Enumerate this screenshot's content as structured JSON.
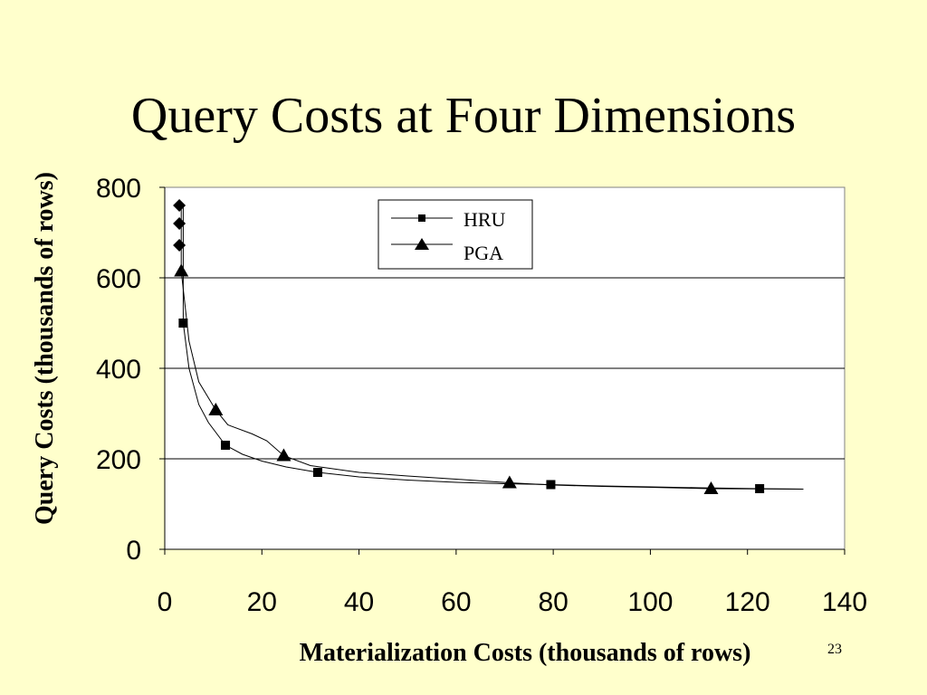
{
  "slide": {
    "title": "Query Costs at Four Dimensions",
    "page_number": "23",
    "background": "#FFFFCC"
  },
  "chart_data": {
    "type": "line",
    "title": "Query Costs at Four Dimensions",
    "xlabel": "Materialization Costs (thousands of rows)",
    "ylabel": "Query Costs (thousands of rows)",
    "xlim": [
      0,
      140
    ],
    "ylim": [
      0,
      800
    ],
    "xticks": [
      0,
      20,
      40,
      60,
      80,
      100,
      120,
      140
    ],
    "yticks": [
      0,
      200,
      400,
      600,
      800
    ],
    "grid": "horizontal",
    "legend_position": "top-center",
    "plot_background": "#FFFFFF",
    "series": [
      {
        "name": "HRU",
        "marker": "square",
        "color": "#000000",
        "line": [
          [
            3.8,
            760
          ],
          [
            3.8,
            500
          ],
          [
            5,
            400
          ],
          [
            7,
            320
          ],
          [
            9,
            280
          ],
          [
            12.5,
            230
          ],
          [
            16,
            210
          ],
          [
            20,
            195
          ],
          [
            25,
            182
          ],
          [
            31.5,
            170
          ],
          [
            40,
            160
          ],
          [
            50,
            153
          ],
          [
            60,
            148
          ],
          [
            70,
            145
          ],
          [
            79.5,
            143
          ],
          [
            90,
            140
          ],
          [
            100,
            138
          ],
          [
            110,
            136
          ],
          [
            122.5,
            134
          ],
          [
            131.5,
            133
          ]
        ],
        "markers": [
          [
            3.8,
            500
          ],
          [
            12.5,
            230
          ],
          [
            31.5,
            170
          ],
          [
            79.5,
            143
          ],
          [
            122.5,
            134
          ]
        ]
      },
      {
        "name": "PGA",
        "marker": "triangle",
        "color": "#000000",
        "line": [
          [
            3.4,
            760
          ],
          [
            3.4,
            615
          ],
          [
            5,
            460
          ],
          [
            7,
            370
          ],
          [
            10.5,
            308
          ],
          [
            13,
            275
          ],
          [
            18,
            255
          ],
          [
            21,
            240
          ],
          [
            24.5,
            207
          ],
          [
            30,
            185
          ],
          [
            40,
            170
          ],
          [
            50,
            162
          ],
          [
            60,
            155
          ],
          [
            71,
            147
          ],
          [
            80,
            142
          ],
          [
            90,
            139
          ],
          [
            100,
            137
          ],
          [
            112.5,
            134
          ],
          [
            131.5,
            133
          ]
        ],
        "markers": [
          [
            3.4,
            615
          ],
          [
            10.5,
            308
          ],
          [
            24.5,
            207
          ],
          [
            71,
            147
          ],
          [
            112.5,
            134
          ]
        ]
      },
      {
        "marker": "diamond",
        "color": "#000000",
        "line": [],
        "markers": [
          [
            3.0,
            760
          ],
          [
            3.0,
            720
          ],
          [
            3.0,
            672
          ]
        ]
      }
    ]
  }
}
